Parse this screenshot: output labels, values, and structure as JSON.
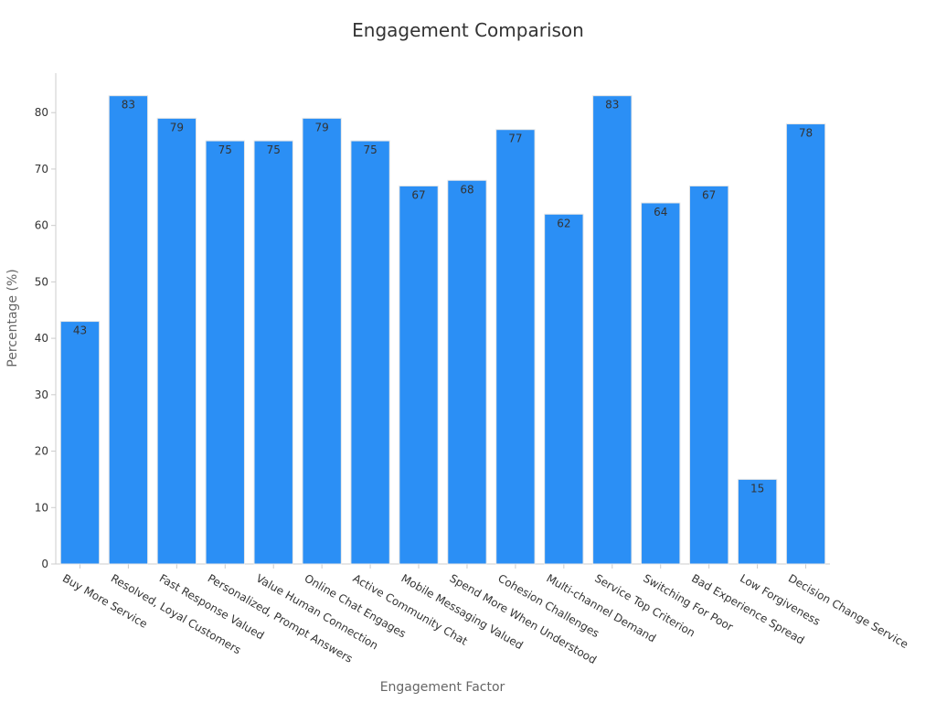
{
  "chart_data": {
    "type": "bar",
    "title": "Engagement Comparison",
    "xlabel": "Engagement Factor",
    "ylabel": "Percentage (%)",
    "ylim": [
      0,
      87
    ],
    "yticks": [
      0,
      10,
      20,
      30,
      40,
      50,
      60,
      70,
      80
    ],
    "grid": false,
    "bar_color": "#2b8ff5",
    "categories": [
      "Buy More Service",
      "Resolved, Loyal Customers",
      "Fast Response Valued",
      "Personalized, Prompt Answers",
      "Value Human Connection",
      "Online Chat Engages",
      "Active Community Chat",
      "Mobile Messaging Valued",
      "Spend More When Understood",
      "Cohesion Challenges",
      "Multi-channel Demand",
      "Service Top Criterion",
      "Switching For Poor",
      "Bad Experience Spread",
      "Low Forgiveness",
      "Decision Change Service"
    ],
    "values": [
      43,
      83,
      79,
      75,
      75,
      79,
      75,
      67,
      68,
      77,
      62,
      83,
      64,
      67,
      15,
      78
    ]
  }
}
